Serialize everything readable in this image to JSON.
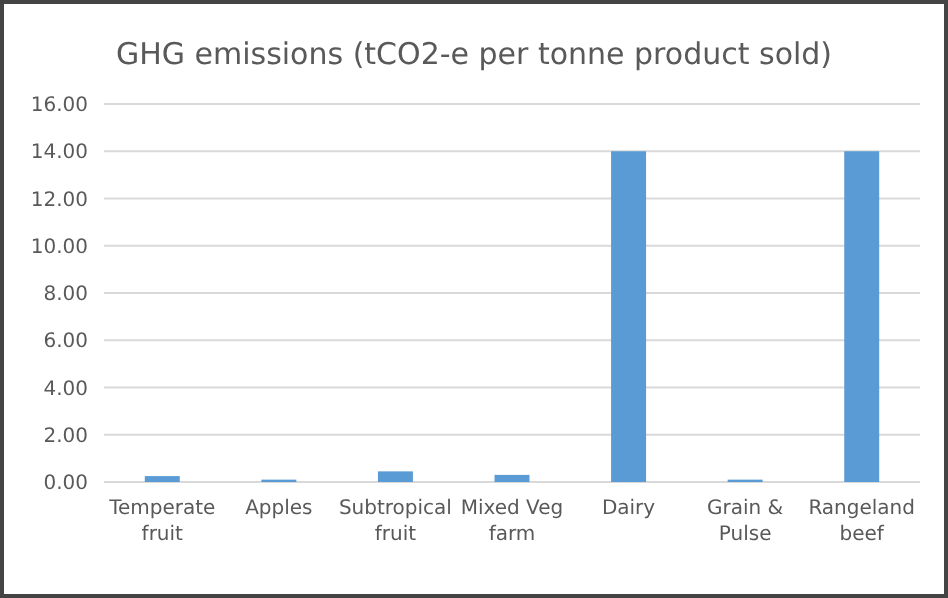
{
  "chart_data": {
    "type": "bar",
    "title": "GHG emissions (tCO2-e per tonne product sold)",
    "categories": [
      "Temperate fruit",
      "Apples",
      "Subtropical fruit",
      "Mixed Veg farm",
      "Dairy",
      "Grain & Pulse",
      "Rangeland beef"
    ],
    "values": [
      0.25,
      0.1,
      0.45,
      0.3,
      14,
      0.1,
      14
    ],
    "color": "#5b9bd5",
    "ylim": [
      0,
      16
    ],
    "yticks": [
      {
        "value": 0,
        "label": "0.00"
      },
      {
        "value": 2,
        "label": "2.00"
      },
      {
        "value": 4,
        "label": "4.00"
      },
      {
        "value": 6,
        "label": "6.00"
      },
      {
        "value": 8,
        "label": "8.00"
      },
      {
        "value": 10,
        "label": "10.00"
      },
      {
        "value": 12,
        "label": "12.00"
      },
      {
        "value": 14,
        "label": "14.00"
      },
      {
        "value": 16,
        "label": "16.00"
      }
    ],
    "grid": "y"
  }
}
